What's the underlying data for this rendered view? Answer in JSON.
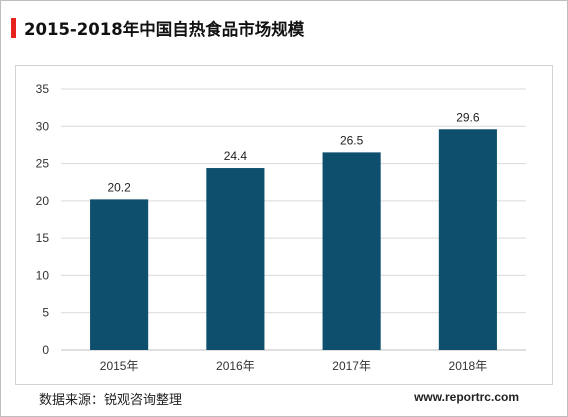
{
  "title": "2015-2018年中国自热食品市场规模",
  "source": "数据来源：锐观咨询整理",
  "website": "www.reportrc.com",
  "colors": {
    "bar": "#0d4f6c",
    "accent": "#e8221f",
    "gridline": "#d9d9d9"
  },
  "chart_data": {
    "type": "bar",
    "categories": [
      "2015年",
      "2016年",
      "2017年",
      "2018年"
    ],
    "values": [
      20.2,
      24.4,
      26.5,
      29.6
    ],
    "data_labels": [
      "20.2",
      "24.4",
      "26.5",
      "29.6"
    ],
    "ylim": [
      0,
      35
    ],
    "yticks": [
      0,
      5,
      10,
      15,
      20,
      25,
      30,
      35
    ],
    "grid": true,
    "legend": "none"
  }
}
